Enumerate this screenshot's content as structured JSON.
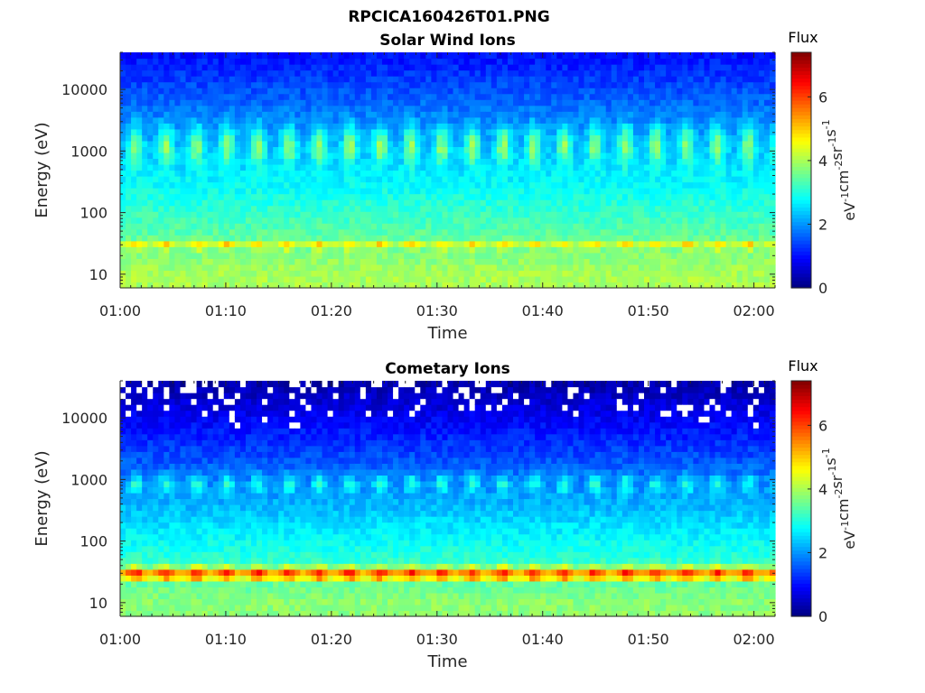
{
  "figure": {
    "title": "RPCICA160426T01.PNG"
  },
  "colors": {
    "axis": "#262626",
    "gap": "#ffffff",
    "colormap": "jet"
  },
  "chart_data": [
    {
      "type": "heatmap",
      "title": "Solar Wind Ions",
      "xlabel": "Time",
      "ylabel": "Energy (eV)",
      "xlim": [
        "01:00",
        "02:02"
      ],
      "x_ticks": [
        "01:00",
        "01:10",
        "01:20",
        "01:30",
        "01:40",
        "01:50",
        "02:00"
      ],
      "ylim": [
        6,
        40000
      ],
      "y_scale": "log",
      "y_ticks": [
        10,
        100,
        1000,
        10000
      ],
      "y_tick_labels": [
        "10",
        "100",
        "1000",
        "10000"
      ],
      "colorbar": {
        "title": "Flux",
        "unit": "eV-1 cm-2 sr-1 s-1",
        "range": [
          0,
          7.4
        ],
        "ticks": [
          "0",
          "2",
          "4",
          "6"
        ]
      },
      "features": {
        "sweep_period_minutes": 2.9,
        "low_energy_band_eV": [
          20,
          45
        ],
        "low_energy_band_peak_flux": 5.0,
        "mid_energy_band_eV": [
          600,
          2500
        ],
        "mid_energy_band_peak_flux": 3.9,
        "background_flux_at_10eV": 4.0,
        "background_flux_at_30000eV": 1.1,
        "data_gaps": false
      }
    },
    {
      "type": "heatmap",
      "title": "Cometary Ions",
      "xlabel": "Time",
      "ylabel": "Energy (eV)",
      "xlim": [
        "01:00",
        "02:02"
      ],
      "x_ticks": [
        "01:00",
        "01:10",
        "01:20",
        "01:30",
        "01:40",
        "01:50",
        "02:00"
      ],
      "ylim": [
        6,
        40000
      ],
      "y_scale": "log",
      "y_ticks": [
        10,
        100,
        1000,
        10000
      ],
      "y_tick_labels": [
        "10",
        "100",
        "1000",
        "10000"
      ],
      "colorbar": {
        "title": "Flux",
        "unit": "eV-1 cm-2 sr-1 s-1",
        "range": [
          0,
          7.4
        ],
        "ticks": [
          "0",
          "2",
          "4",
          "6"
        ]
      },
      "features": {
        "sweep_period_minutes": 2.9,
        "low_energy_band_eV": [
          20,
          45
        ],
        "low_energy_band_peak_flux": 6.4,
        "mid_energy_band_eV": [
          600,
          1200
        ],
        "mid_energy_band_peak_flux": 3.1,
        "background_flux_at_10eV": 3.8,
        "background_flux_at_30000eV": 0.4,
        "data_gaps": true
      }
    }
  ]
}
